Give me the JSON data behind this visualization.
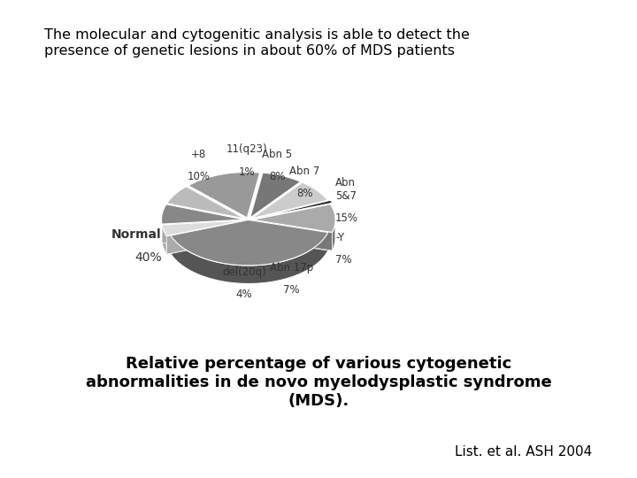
{
  "title": "The molecular and cytogenitic analysis is able to detect the\npresence of genetic lesions in about 60% of MDS patients",
  "title_fontsize": 11.5,
  "subtitle": "Relative percentage of various cytogenetic\nabnormalities in de novo myelodysplastic syndrome\n(MDS).",
  "subtitle_fontsize": 13,
  "citation": "List. et al. ASH 2004",
  "citation_fontsize": 11,
  "slices": [
    {
      "label": "Normal",
      "pct": "40%",
      "value": 40,
      "color": "#888888",
      "dark_color": "#555555",
      "explode": 0.0
    },
    {
      "+8": "+8",
      "label": "+8",
      "pct": "10%",
      "value": 10,
      "color": "#aaaaaa",
      "dark_color": "#777777",
      "explode": 0.05
    },
    {
      "label": "11(q23)",
      "pct": "1%",
      "value": 1,
      "color": "#222222",
      "dark_color": "#111111",
      "explode": 0.08
    },
    {
      "label": "Abn 5",
      "pct": "8%",
      "value": 8,
      "color": "#cccccc",
      "dark_color": "#999999",
      "explode": 0.05
    },
    {
      "label": "Abn 7",
      "pct": "8%",
      "value": 8,
      "color": "#777777",
      "dark_color": "#444444",
      "explode": 0.05
    },
    {
      "label": "Abn 5&7",
      "pct": "15%",
      "value": 15,
      "color": "#999999",
      "dark_color": "#666666",
      "explode": 0.05
    },
    {
      "label": "-Y",
      "pct": "7%",
      "value": 7,
      "color": "#bbbbbb",
      "dark_color": "#888888",
      "explode": 0.05
    },
    {
      "label": "Abn 17p",
      "pct": "7%",
      "value": 7,
      "color": "#888888",
      "dark_color": "#555555",
      "explode": 0.05
    },
    {
      "label": "del(20q)",
      "pct": "4%",
      "value": 4,
      "color": "#dddddd",
      "dark_color": "#aaaaaa",
      "explode": 0.05
    }
  ],
  "background_color": "#ffffff"
}
